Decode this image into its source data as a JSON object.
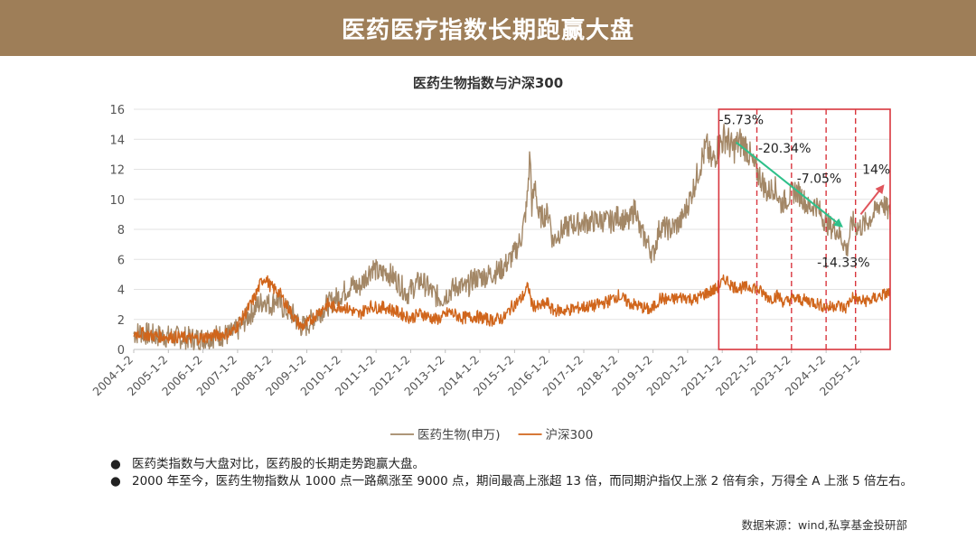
{
  "banner": {
    "title": "医药医疗指数长期跑赢大盘"
  },
  "colors": {
    "banner": "#9e7e58",
    "bio": "#a38766",
    "hs300": "#d0651b",
    "highlight": "#d9363e",
    "arrow_down": "#2ec08a",
    "arrow_up": "#e0555c"
  },
  "chart_data": {
    "type": "line",
    "title": "医药生物指数与沪深300",
    "ylim": [
      0,
      16
    ],
    "yticks": [
      "0",
      "2",
      "4",
      "6",
      "8",
      "10",
      "12",
      "14",
      "16"
    ],
    "x_start": 2004.0,
    "x_end": 2025.85,
    "xticks": [
      "2004-1-2",
      "2005-1-2",
      "2006-1-2",
      "2007-1-2",
      "2008-1-2",
      "2009-1-2",
      "2010-1-2",
      "2011-1-2",
      "2012-1-2",
      "2013-1-2",
      "2014-1-2",
      "2015-1-2",
      "2016-1-2",
      "2017-1-2",
      "2018-1-2",
      "2019-1-2",
      "2020-1-2",
      "2021-1-2",
      "2022-1-2",
      "2023-1-2",
      "2024-1-2",
      "2025-1-2"
    ],
    "series": [
      {
        "name": "医药生物(申万)",
        "color": "#a38766",
        "points": [
          [
            2004.0,
            1.05
          ],
          [
            2004.2,
            1.15
          ],
          [
            2004.5,
            0.95
          ],
          [
            2005.0,
            0.85
          ],
          [
            2005.4,
            0.8
          ],
          [
            2005.8,
            0.7
          ],
          [
            2006.0,
            0.75
          ],
          [
            2006.4,
            0.9
          ],
          [
            2006.8,
            1.0
          ],
          [
            2007.0,
            1.3
          ],
          [
            2007.3,
            2.2
          ],
          [
            2007.6,
            3.0
          ],
          [
            2007.8,
            3.3
          ],
          [
            2007.95,
            2.9
          ],
          [
            2008.1,
            3.4
          ],
          [
            2008.3,
            2.8
          ],
          [
            2008.6,
            2.3
          ],
          [
            2008.8,
            1.6
          ],
          [
            2008.95,
            1.5
          ],
          [
            2009.2,
            2.1
          ],
          [
            2009.5,
            2.8
          ],
          [
            2009.8,
            3.3
          ],
          [
            2010.0,
            3.7
          ],
          [
            2010.3,
            4.3
          ],
          [
            2010.5,
            4.1
          ],
          [
            2010.8,
            5.2
          ],
          [
            2010.9,
            5.5
          ],
          [
            2011.1,
            5.0
          ],
          [
            2011.3,
            5.2
          ],
          [
            2011.6,
            4.6
          ],
          [
            2011.9,
            3.7
          ],
          [
            2012.1,
            4.2
          ],
          [
            2012.3,
            4.6
          ],
          [
            2012.5,
            4.1
          ],
          [
            2012.7,
            3.6
          ],
          [
            2012.9,
            3.4
          ],
          [
            2013.2,
            4.0
          ],
          [
            2013.4,
            4.3
          ],
          [
            2013.6,
            4.0
          ],
          [
            2013.8,
            4.7
          ],
          [
            2014.0,
            4.8
          ],
          [
            2014.3,
            5.0
          ],
          [
            2014.6,
            5.3
          ],
          [
            2014.8,
            5.8
          ],
          [
            2015.0,
            6.4
          ],
          [
            2015.2,
            7.5
          ],
          [
            2015.35,
            9.5
          ],
          [
            2015.45,
            13.1
          ],
          [
            2015.5,
            9.5
          ],
          [
            2015.6,
            11.0
          ],
          [
            2015.7,
            8.8
          ],
          [
            2015.85,
            8.9
          ],
          [
            2016.0,
            9.1
          ],
          [
            2016.1,
            7.2
          ],
          [
            2016.3,
            7.8
          ],
          [
            2016.6,
            8.3
          ],
          [
            2016.9,
            8.4
          ],
          [
            2017.2,
            8.5
          ],
          [
            2017.5,
            8.6
          ],
          [
            2017.8,
            8.5
          ],
          [
            2018.0,
            8.9
          ],
          [
            2018.3,
            8.4
          ],
          [
            2018.5,
            9.6
          ],
          [
            2018.6,
            8.0
          ],
          [
            2018.8,
            7.3
          ],
          [
            2019.0,
            6.3
          ],
          [
            2019.2,
            8.2
          ],
          [
            2019.5,
            8.0
          ],
          [
            2019.8,
            8.5
          ],
          [
            2020.0,
            9.6
          ],
          [
            2020.2,
            11.0
          ],
          [
            2020.4,
            12.6
          ],
          [
            2020.55,
            13.5
          ],
          [
            2020.7,
            12.4
          ],
          [
            2020.9,
            13.6
          ],
          [
            2021.1,
            14.2
          ],
          [
            2021.3,
            13.3
          ],
          [
            2021.5,
            13.8
          ],
          [
            2021.7,
            13.5
          ],
          [
            2021.9,
            12.2
          ],
          [
            2022.1,
            11.5
          ],
          [
            2022.3,
            10.4
          ],
          [
            2022.5,
            10.9
          ],
          [
            2022.7,
            9.7
          ],
          [
            2022.9,
            10.1
          ],
          [
            2023.1,
            10.6
          ],
          [
            2023.3,
            10.2
          ],
          [
            2023.5,
            9.4
          ],
          [
            2023.7,
            9.7
          ],
          [
            2023.9,
            8.8
          ],
          [
            2024.1,
            8.2
          ],
          [
            2024.3,
            8.0
          ],
          [
            2024.5,
            7.2
          ],
          [
            2024.6,
            6.6
          ],
          [
            2024.75,
            8.5
          ],
          [
            2024.95,
            8.1
          ],
          [
            2025.15,
            8.4
          ],
          [
            2025.4,
            9.1
          ],
          [
            2025.6,
            9.9
          ],
          [
            2025.85,
            9.0
          ]
        ]
      },
      {
        "name": "沪深300",
        "color": "#d0651b",
        "points": [
          [
            2004.0,
            1.05
          ],
          [
            2004.2,
            1.1
          ],
          [
            2004.5,
            0.92
          ],
          [
            2005.0,
            0.85
          ],
          [
            2005.4,
            0.8
          ],
          [
            2005.8,
            0.72
          ],
          [
            2006.0,
            0.8
          ],
          [
            2006.4,
            0.95
          ],
          [
            2006.8,
            1.1
          ],
          [
            2007.0,
            1.6
          ],
          [
            2007.3,
            2.7
          ],
          [
            2007.5,
            3.5
          ],
          [
            2007.7,
            4.6
          ],
          [
            2007.8,
            4.8
          ],
          [
            2007.95,
            4.2
          ],
          [
            2008.2,
            3.8
          ],
          [
            2008.4,
            3.0
          ],
          [
            2008.7,
            1.9
          ],
          [
            2008.85,
            1.5
          ],
          [
            2009.0,
            1.7
          ],
          [
            2009.3,
            2.4
          ],
          [
            2009.6,
            3.0
          ],
          [
            2009.8,
            2.8
          ],
          [
            2010.0,
            2.9
          ],
          [
            2010.3,
            2.6
          ],
          [
            2010.5,
            2.3
          ],
          [
            2010.8,
            2.9
          ],
          [
            2011.0,
            2.8
          ],
          [
            2011.3,
            2.8
          ],
          [
            2011.7,
            2.4
          ],
          [
            2012.0,
            2.1
          ],
          [
            2012.3,
            2.4
          ],
          [
            2012.7,
            2.0
          ],
          [
            2012.9,
            2.1
          ],
          [
            2013.1,
            2.5
          ],
          [
            2013.5,
            2.1
          ],
          [
            2013.9,
            2.2
          ],
          [
            2014.3,
            1.95
          ],
          [
            2014.7,
            2.1
          ],
          [
            2014.9,
            2.8
          ],
          [
            2015.2,
            3.4
          ],
          [
            2015.4,
            4.2
          ],
          [
            2015.5,
            3.0
          ],
          [
            2015.7,
            2.8
          ],
          [
            2015.95,
            3.1
          ],
          [
            2016.1,
            2.6
          ],
          [
            2016.5,
            2.6
          ],
          [
            2016.9,
            2.8
          ],
          [
            2017.3,
            2.9
          ],
          [
            2017.7,
            3.2
          ],
          [
            2018.0,
            3.6
          ],
          [
            2018.3,
            3.1
          ],
          [
            2018.7,
            2.8
          ],
          [
            2018.95,
            2.6
          ],
          [
            2019.2,
            3.4
          ],
          [
            2019.5,
            3.3
          ],
          [
            2019.9,
            3.5
          ],
          [
            2020.2,
            3.3
          ],
          [
            2020.5,
            3.7
          ],
          [
            2020.8,
            4.0
          ],
          [
            2021.1,
            4.7
          ],
          [
            2021.3,
            4.2
          ],
          [
            2021.6,
            4.1
          ],
          [
            2021.9,
            4.2
          ],
          [
            2022.2,
            3.7
          ],
          [
            2022.4,
            3.4
          ],
          [
            2022.6,
            3.6
          ],
          [
            2022.8,
            3.1
          ],
          [
            2023.0,
            3.4
          ],
          [
            2023.3,
            3.3
          ],
          [
            2023.6,
            3.2
          ],
          [
            2023.9,
            2.9
          ],
          [
            2024.1,
            2.8
          ],
          [
            2024.3,
            3.0
          ],
          [
            2024.55,
            2.7
          ],
          [
            2024.75,
            3.5
          ],
          [
            2025.0,
            3.2
          ],
          [
            2025.3,
            3.3
          ],
          [
            2025.6,
            3.6
          ],
          [
            2025.85,
            3.8
          ]
        ]
      }
    ],
    "annotations": {
      "labels": [
        {
          "text": "-5.73%",
          "x": 2021.55,
          "y": 15.0
        },
        {
          "text": "-20.34%",
          "x": 2022.8,
          "y": 13.1
        },
        {
          "text": "-7.05%",
          "x": 2023.8,
          "y": 11.1
        },
        {
          "text": "-14.33%",
          "x": 2024.5,
          "y": 5.5
        },
        {
          "text": "14%",
          "x": 2025.45,
          "y": 11.7
        }
      ],
      "highlight_range": [
        2020.9,
        2025.9
      ],
      "dividers": [
        2022.0,
        2023.0,
        2024.0,
        2024.85
      ],
      "trend_down": {
        "from": [
          2021.4,
          13.8
        ],
        "to": [
          2024.45,
          8.2
        ]
      },
      "trend_up": {
        "from": [
          2025.0,
          9.0
        ],
        "to": [
          2025.65,
          10.9
        ]
      }
    }
  },
  "notes": [
    {
      "bullet": "●",
      "text": "医药类指数与大盘对比，医药股的长期走势跑赢大盘。"
    },
    {
      "bullet": "●",
      "text": "2000 年至今，医药生物指数从 1000 点一路飙涨至 9000 点，期间最高上涨超 13 倍，而同期沪指仅上涨 2 倍有余，万得全 A 上涨 5 倍左右。"
    }
  ],
  "source": "数据来源：wind,私享基金投研部"
}
